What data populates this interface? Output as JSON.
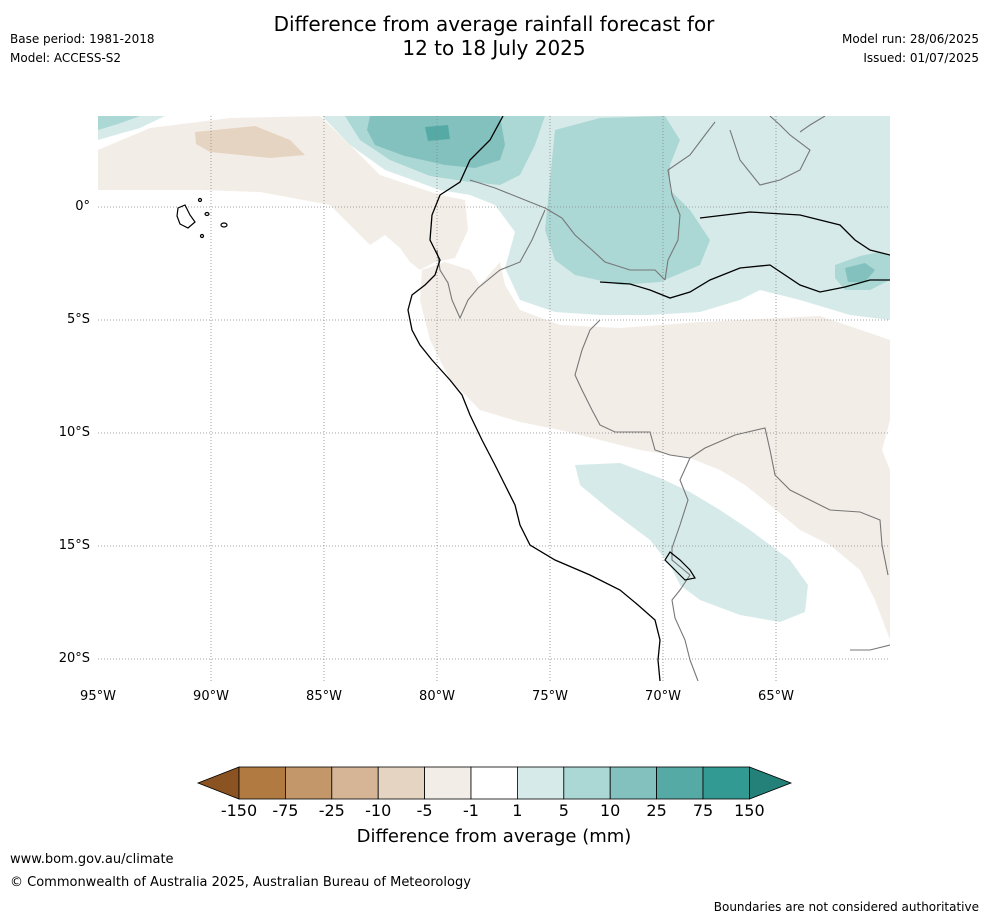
{
  "header": {
    "title_line1": "Difference from average rainfall forecast for",
    "title_line2": "12 to 18 July 2025",
    "base_period": "Base period: 1981-2018",
    "model": "Model: ACCESS-S2",
    "model_run": "Model run: 28/06/2025",
    "issued": "Issued: 01/07/2025"
  },
  "map": {
    "lat_labels": [
      "0°",
      "5°S",
      "10°S",
      "15°S",
      "20°S"
    ],
    "lon_labels": [
      "95°W",
      "90°W",
      "85°W",
      "80°W",
      "75°W",
      "70°W",
      "65°W"
    ],
    "colors": {
      "land_border": "#777777",
      "coast": "#000000",
      "grid": "#888888"
    }
  },
  "colorbar": {
    "ticks": [
      "-150",
      "-75",
      "-25",
      "-10",
      "-5",
      "-1",
      "1",
      "5",
      "10",
      "25",
      "75",
      "150"
    ],
    "colors": [
      "#8a5321",
      "#b07a41",
      "#c4976a",
      "#d6b597",
      "#e6d4c2",
      "#f3ede7",
      "#ffffff",
      "#d6ebe9",
      "#abd7d4",
      "#83c1be",
      "#56aaa6",
      "#339a93",
      "#23817a"
    ],
    "label": "Difference from average (mm)"
  },
  "footer": {
    "url": "www.bom.gov.au/climate",
    "copyright": "© Commonwealth of Australia 2025, Australian Bureau of Meteorology",
    "disclaimer": "Boundaries are not considered authoritative"
  }
}
